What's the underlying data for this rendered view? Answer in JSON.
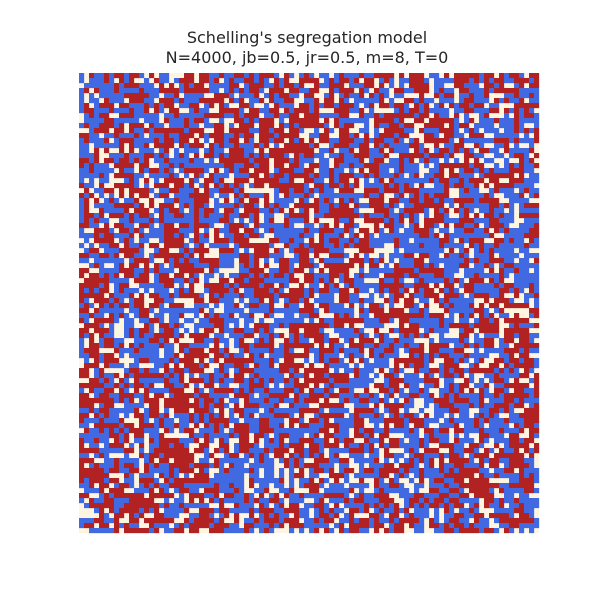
{
  "chart_data": {
    "type": "heatmap",
    "title": "Schelling's segregation model",
    "subtitle": "N=4000, jb=0.5, jr=0.5, m=8, T=0",
    "parameters": {
      "N": 4000,
      "jb": 0.5,
      "jr": 0.5,
      "m": 8,
      "T": 0
    },
    "grid": {
      "rows": 92,
      "cols": 92,
      "cell_states": [
        "empty",
        "blue",
        "red"
      ],
      "approx_fractions": {
        "empty": 0.2,
        "blue": 0.4,
        "red": 0.4
      },
      "note_visible": "clustered random initial configuration"
    },
    "colors": {
      "empty": "#fdf5e0",
      "blue": "#4169e1",
      "red": "#b22222"
    },
    "axes": "off",
    "grid_lines": false,
    "legend": "none",
    "xlabel": "",
    "ylabel": ""
  }
}
